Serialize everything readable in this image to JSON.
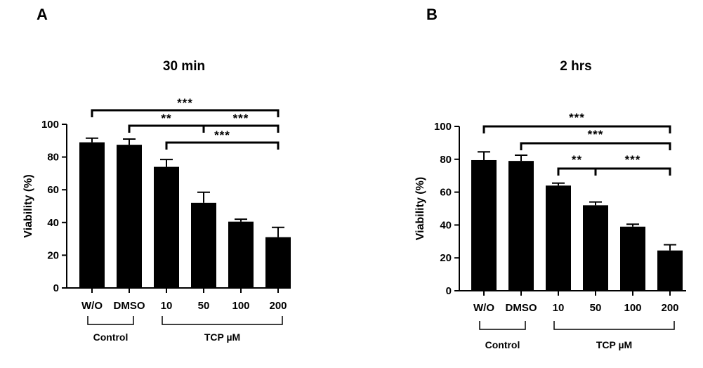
{
  "chart_data": [
    {
      "panel": "A",
      "title": "30 min",
      "type": "bar",
      "ylabel": "Viability (%)",
      "ylim": [
        0,
        100
      ],
      "yticks": [
        0,
        20,
        40,
        60,
        80,
        100
      ],
      "categories": [
        "W/O",
        "DMSO",
        "10",
        "50",
        "100",
        "200"
      ],
      "values": [
        89,
        87.5,
        74,
        52,
        40.5,
        31
      ],
      "errors": [
        2.5,
        3.5,
        4.5,
        6.5,
        1.5,
        6
      ],
      "groups": [
        {
          "label": "Control",
          "from": 0,
          "to": 1
        },
        {
          "label": "TCP µM",
          "from": 2,
          "to": 5
        }
      ],
      "significance": [
        {
          "from": 0,
          "to": 5,
          "stars": "***"
        },
        {
          "from": 1,
          "to": 5,
          "split": 3,
          "stars_left": "**",
          "stars_right": "***"
        },
        {
          "from": 2,
          "to": 5,
          "stars": "***"
        }
      ]
    },
    {
      "panel": "B",
      "title": "2 hrs",
      "type": "bar",
      "ylabel": "Viability (%)",
      "ylim": [
        0,
        100
      ],
      "yticks": [
        0,
        20,
        40,
        60,
        80,
        100
      ],
      "categories": [
        "W/O",
        "DMSO",
        "10",
        "50",
        "100",
        "200"
      ],
      "values": [
        79.5,
        79,
        64,
        52,
        39,
        24.5
      ],
      "errors": [
        5,
        3.5,
        1.5,
        2,
        1.5,
        3.5
      ],
      "groups": [
        {
          "label": "Control",
          "from": 0,
          "to": 1
        },
        {
          "label": "TCP µM",
          "from": 2,
          "to": 5
        }
      ],
      "significance": [
        {
          "from": 0,
          "to": 5,
          "stars": "***"
        },
        {
          "from": 1,
          "to": 5,
          "stars": "***"
        },
        {
          "from": 2,
          "to": 5,
          "split": 3,
          "stars_left": "**",
          "stars_right": "***"
        }
      ]
    }
  ]
}
